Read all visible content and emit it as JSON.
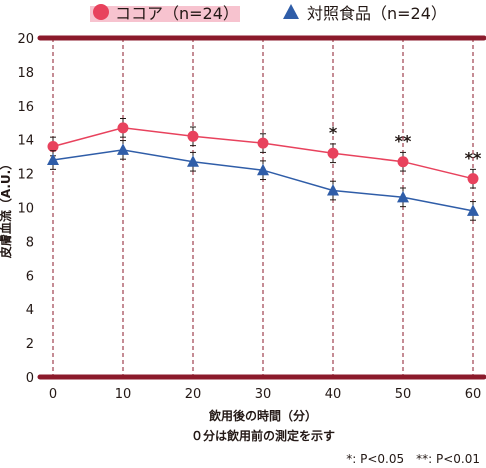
{
  "chart_data": {
    "type": "line",
    "x": [
      0,
      10,
      20,
      30,
      40,
      50,
      60
    ],
    "series": [
      {
        "name": "ココア（n=24）",
        "color": "#e8425d",
        "marker": "circle",
        "values": [
          13.6,
          14.7,
          14.2,
          13.8,
          13.2,
          12.7,
          11.7
        ],
        "errors": [
          0.55,
          0.55,
          0.55,
          0.55,
          0.55,
          0.55,
          0.55
        ]
      },
      {
        "name": "対照食品（n=24）",
        "color": "#2f5da8",
        "marker": "triangle",
        "values": [
          12.8,
          13.4,
          12.7,
          12.2,
          11.0,
          10.6,
          9.8
        ],
        "errors": [
          0.55,
          0.55,
          0.55,
          0.55,
          0.55,
          0.55,
          0.55
        ]
      }
    ],
    "xlim": [
      0,
      60
    ],
    "ylim": [
      0,
      20
    ],
    "xticks": [
      "0",
      "10",
      "20",
      "30",
      "40",
      "50",
      "60"
    ],
    "yticks": [
      "0",
      "2",
      "4",
      "6",
      "8",
      "10",
      "12",
      "14",
      "16",
      "18",
      "20"
    ],
    "ylabel": "皮膚血流（A.U.）",
    "xlabel": "飲用後の時間（分）",
    "xlabel_note": "０分は飲用前の測定を示す",
    "significance": [
      {
        "x": 40,
        "label": "*"
      },
      {
        "x": 50,
        "label": "**"
      },
      {
        "x": 60,
        "label": "**"
      }
    ],
    "footnote": "*: P<0.05　**: P<0.01",
    "legend_position": "top",
    "grid": "dashed vertical",
    "frame_color": "#8b1a2b"
  }
}
